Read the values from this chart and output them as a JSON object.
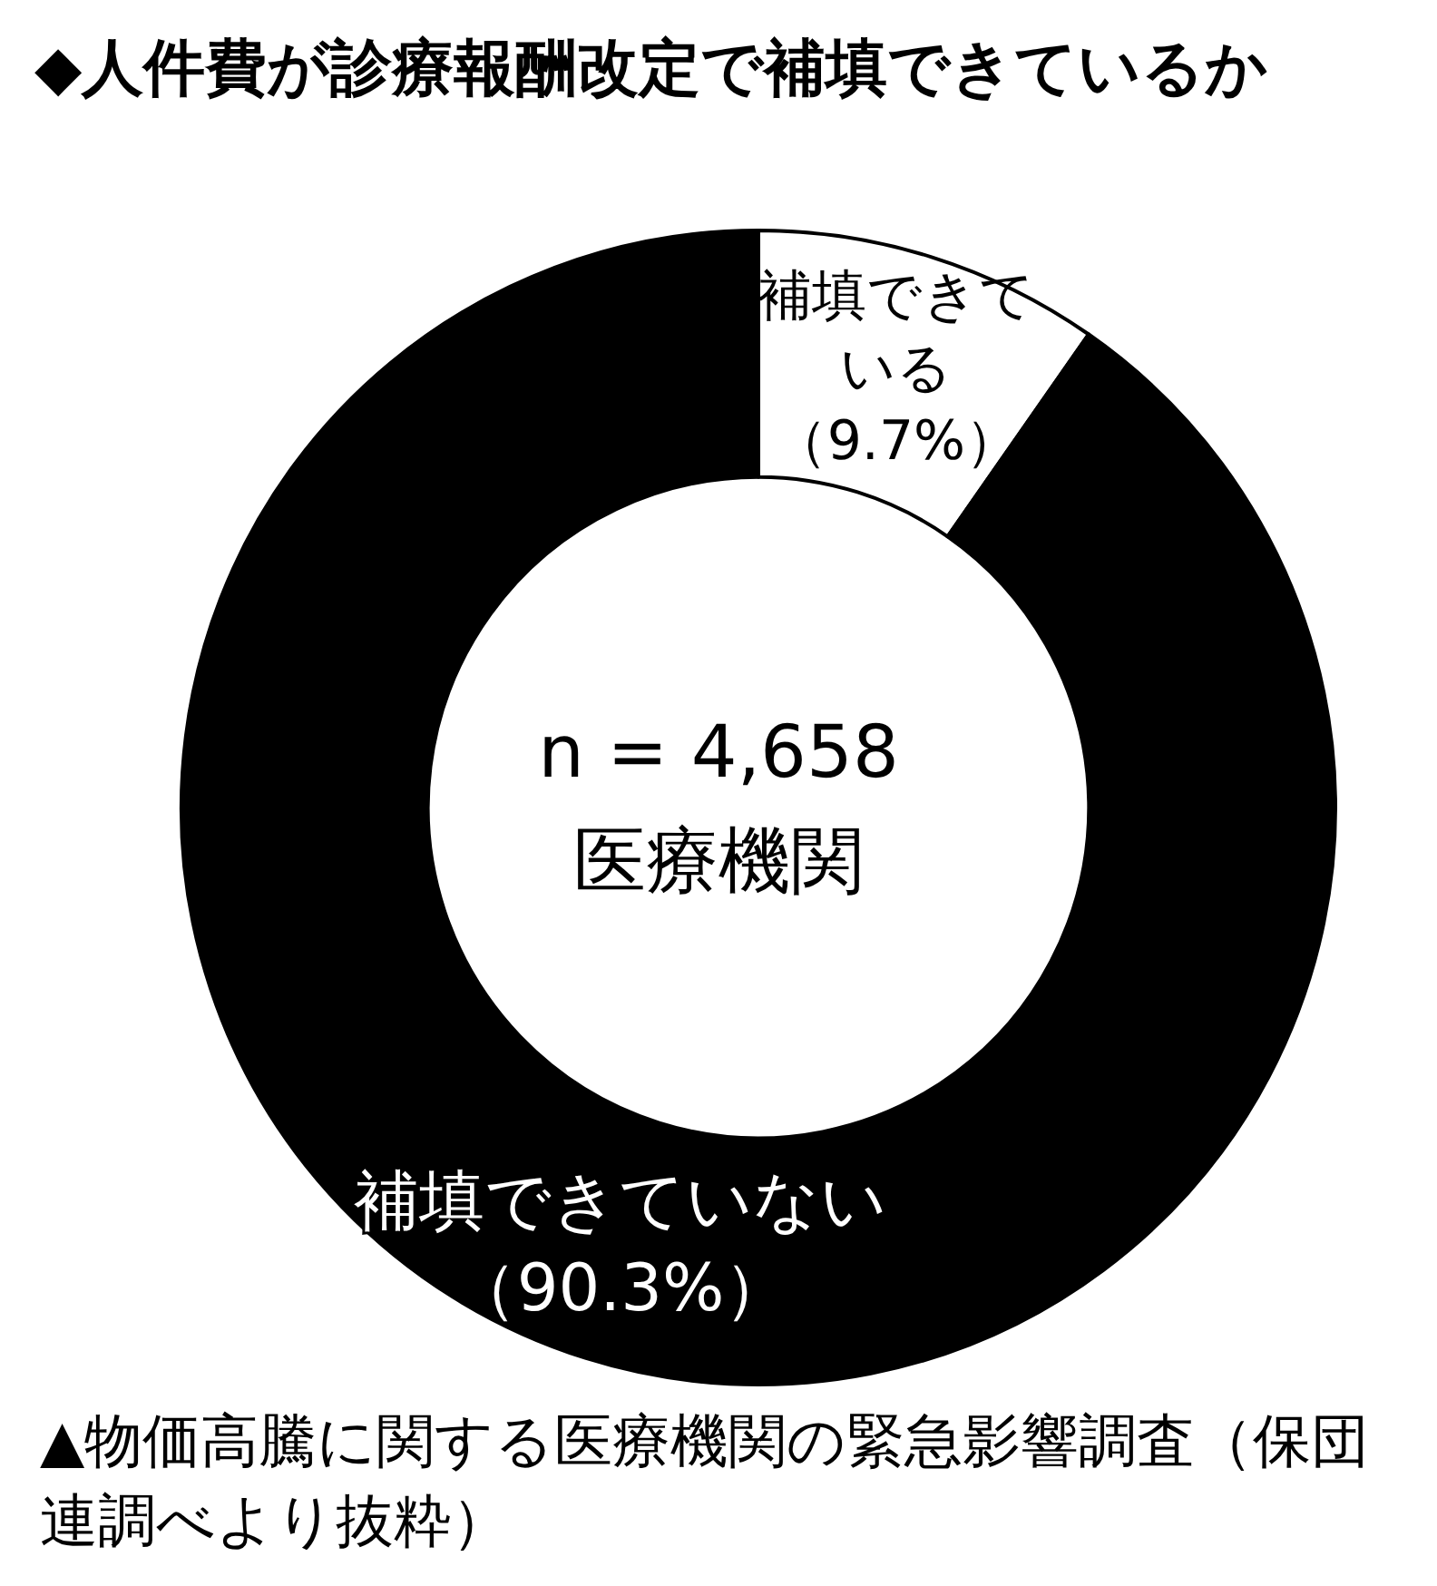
{
  "chart_data": {
    "type": "donut",
    "title": "◆人件費が診療報酬改定で補填できているか",
    "categories": [
      "補填できている",
      "補填できていない"
    ],
    "values": [
      9.7,
      90.3
    ],
    "colors": [
      "#ffffff",
      "#000000"
    ],
    "value_labels": [
      "（9.7%）",
      "（90.3%）"
    ],
    "legend": false,
    "annotations": [
      "n = 4,658\n医療機関",
      "▲物価高騰に関する医療機関の緊急影響調査（保団連調べより抜粋）"
    ]
  }
}
